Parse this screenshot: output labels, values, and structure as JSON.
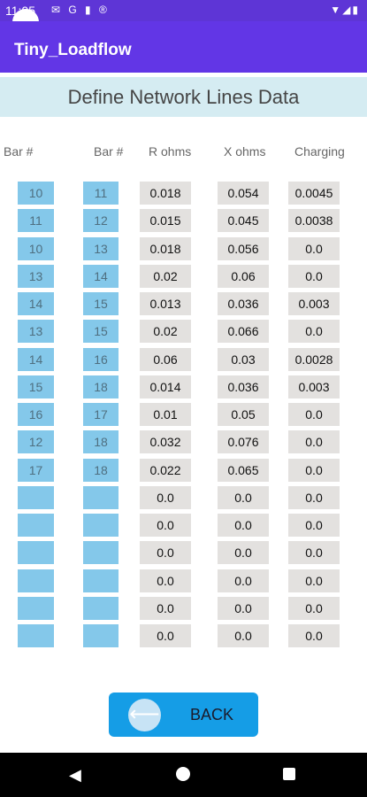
{
  "status": {
    "time": "11:05",
    "icons": [
      "mail-icon",
      "google-icon",
      "storage-icon",
      "sync-icon"
    ]
  },
  "app": {
    "title": "Tiny_Loadflow"
  },
  "section": {
    "title": "Define Network Lines Data"
  },
  "headers": {
    "from_bar": "Bar #",
    "to_bar": "Bar #",
    "r": "R ohms",
    "x": "X ohms",
    "charging": "Charging"
  },
  "rows": [
    {
      "from": "10",
      "to": "11",
      "r": "0.018",
      "x": "0.054",
      "c": "0.0045"
    },
    {
      "from": "11",
      "to": "12",
      "r": "0.015",
      "x": "0.045",
      "c": "0.0038"
    },
    {
      "from": "10",
      "to": "13",
      "r": "0.018",
      "x": "0.056",
      "c": "0.0"
    },
    {
      "from": "13",
      "to": "14",
      "r": "0.02",
      "x": "0.06",
      "c": "0.0"
    },
    {
      "from": "14",
      "to": "15",
      "r": "0.013",
      "x": "0.036",
      "c": "0.003"
    },
    {
      "from": "13",
      "to": "15",
      "r": "0.02",
      "x": "0.066",
      "c": "0.0"
    },
    {
      "from": "14",
      "to": "16",
      "r": "0.06",
      "x": "0.03",
      "c": "0.0028"
    },
    {
      "from": "15",
      "to": "18",
      "r": "0.014",
      "x": "0.036",
      "c": "0.003"
    },
    {
      "from": "16",
      "to": "17",
      "r": "0.01",
      "x": "0.05",
      "c": "0.0"
    },
    {
      "from": "12",
      "to": "18",
      "r": "0.032",
      "x": "0.076",
      "c": "0.0"
    },
    {
      "from": "17",
      "to": "18",
      "r": "0.022",
      "x": "0.065",
      "c": "0.0"
    },
    {
      "from": "",
      "to": "",
      "r": "0.0",
      "x": "0.0",
      "c": "0.0"
    },
    {
      "from": "",
      "to": "",
      "r": "0.0",
      "x": "0.0",
      "c": "0.0"
    },
    {
      "from": "",
      "to": "",
      "r": "0.0",
      "x": "0.0",
      "c": "0.0"
    },
    {
      "from": "",
      "to": "",
      "r": "0.0",
      "x": "0.0",
      "c": "0.0"
    },
    {
      "from": "",
      "to": "",
      "r": "0.0",
      "x": "0.0",
      "c": "0.0"
    },
    {
      "from": "",
      "to": "",
      "r": "0.0",
      "x": "0.0",
      "c": "0.0"
    }
  ],
  "back_button": {
    "label": "BACK",
    "icon": "arrow-left-icon"
  },
  "nav": {
    "icons": [
      "nav-back-icon",
      "nav-home-icon",
      "nav-recent-icon"
    ]
  }
}
